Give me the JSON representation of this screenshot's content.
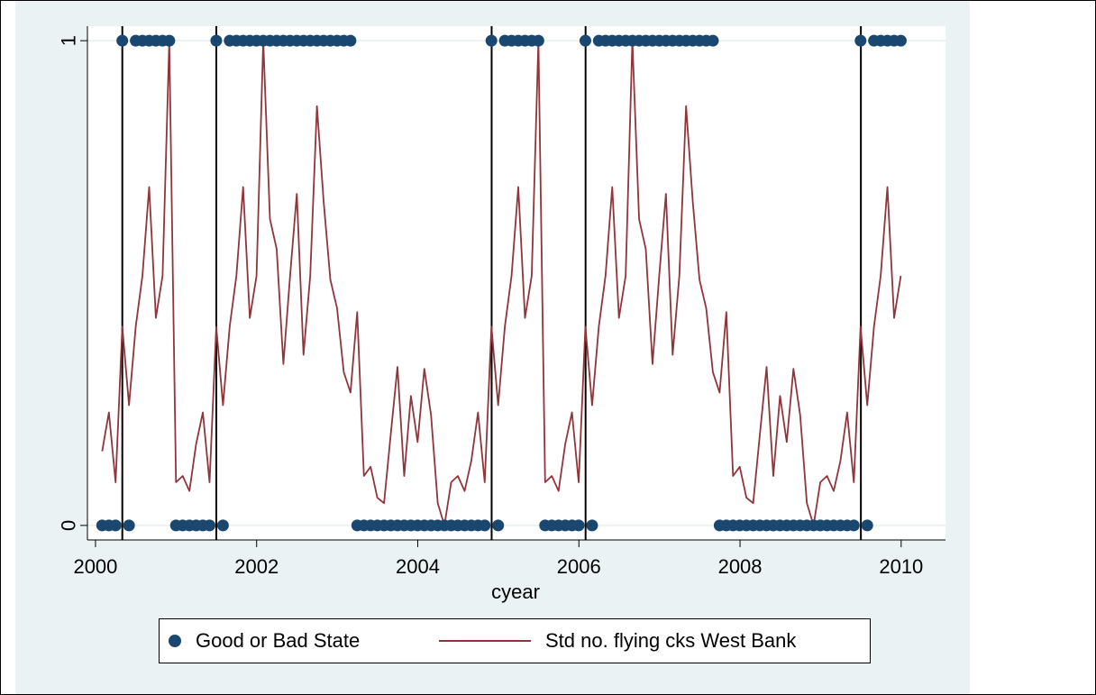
{
  "chart_data": {
    "type": "line",
    "xlabel": "cyear",
    "ylabel": "",
    "xlim": [
      1999.9,
      2010.55
    ],
    "ylim": [
      -0.03,
      1.03
    ],
    "xticks": [
      2000,
      2002,
      2004,
      2006,
      2008,
      2010
    ],
    "yticks": [
      0,
      1
    ],
    "grid": true,
    "legend_position": "bottom",
    "vlines": [
      2000.333,
      2001.5,
      2004.917,
      2006.083,
      2009.5
    ],
    "series": [
      {
        "name": "Good or Bad State",
        "kind": "scatter",
        "color": "#1a476f",
        "x_start": 2000.083,
        "x_step": 0.0833,
        "values": [
          0,
          0,
          0,
          1,
          0,
          1,
          1,
          1,
          1,
          1,
          1,
          0,
          0,
          0,
          0,
          0,
          0,
          1,
          0,
          1,
          1,
          1,
          1,
          1,
          1,
          1,
          1,
          1,
          1,
          1,
          1,
          1,
          1,
          1,
          1,
          1,
          1,
          1,
          0,
          0,
          0,
          0,
          0,
          0,
          0,
          0,
          0,
          0,
          0,
          0,
          0,
          0,
          0,
          0,
          0,
          0,
          0,
          0,
          1,
          0,
          1,
          1,
          1,
          1,
          1,
          1,
          0,
          0,
          0,
          0,
          0,
          0,
          1,
          0,
          1,
          1,
          1,
          1,
          1,
          1,
          1,
          1,
          1,
          1,
          1,
          1,
          1,
          1,
          1,
          1,
          1,
          1,
          0,
          0,
          0,
          0,
          0,
          0,
          0,
          0,
          0,
          0,
          0,
          0,
          0,
          0,
          0,
          0,
          0,
          0,
          0,
          0,
          0,
          1,
          0,
          1,
          1,
          1,
          1,
          1
        ]
      },
      {
        "name": "Std no. flying cks West Bank",
        "kind": "line",
        "color": "#90353b",
        "x_start": 2000.083,
        "x_step": 0.0833,
        "values": [
          0.153,
          0.233,
          0.089,
          0.41,
          0.248,
          0.41,
          0.515,
          0.698,
          0.428,
          0.515,
          1.0,
          0.089,
          0.102,
          0.071,
          0.168,
          0.233,
          0.089,
          0.41,
          0.248,
          0.41,
          0.515,
          0.698,
          0.428,
          0.515,
          1.0,
          0.632,
          0.57,
          0.333,
          0.515,
          0.684,
          0.352,
          0.515,
          0.865,
          0.668,
          0.507,
          0.448,
          0.316,
          0.274,
          0.44,
          0.102,
          0.121,
          0.057,
          0.046,
          0.188,
          0.327,
          0.102,
          0.267,
          0.172,
          0.323,
          0.228,
          0.046,
          0.0,
          0.089,
          0.102,
          0.071,
          0.133,
          0.233,
          0.089,
          0.41,
          0.248,
          0.41,
          0.515,
          0.698,
          0.428,
          0.515,
          1.0,
          0.089,
          0.102,
          0.071,
          0.168,
          0.233,
          0.089,
          0.41,
          0.248,
          0.41,
          0.515,
          0.698,
          0.428,
          0.515,
          1.0,
          0.632,
          0.57,
          0.333,
          0.515,
          0.684,
          0.352,
          0.515,
          0.865,
          0.668,
          0.507,
          0.448,
          0.316,
          0.274,
          0.44,
          0.102,
          0.121,
          0.057,
          0.046,
          0.188,
          0.327,
          0.102,
          0.267,
          0.172,
          0.323,
          0.228,
          0.046,
          0.0,
          0.089,
          0.102,
          0.071,
          0.133,
          0.233,
          0.089,
          0.41,
          0.248,
          0.41,
          0.515,
          0.698,
          0.428,
          0.515
        ]
      }
    ]
  }
}
